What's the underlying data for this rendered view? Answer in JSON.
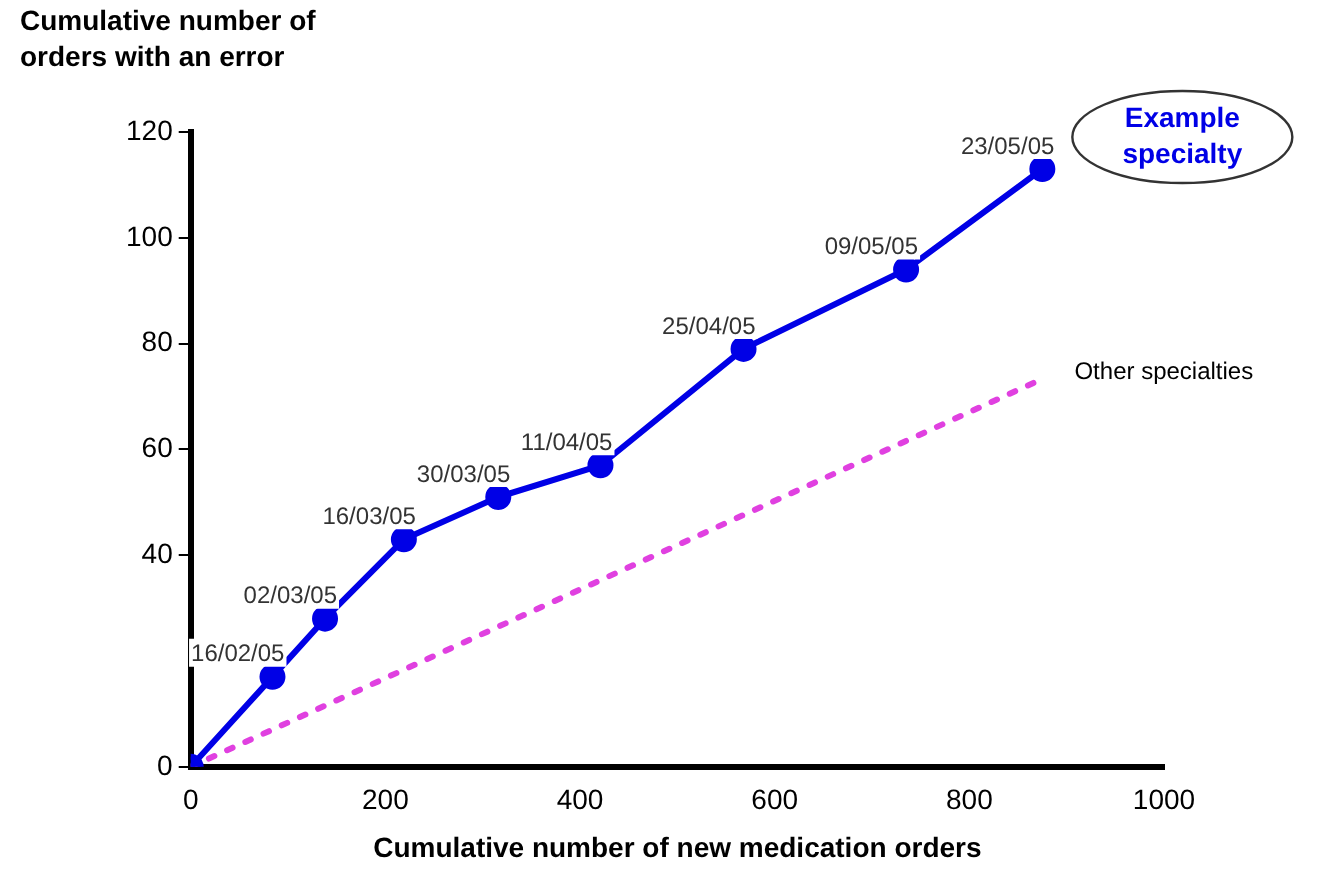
{
  "chart_data": {
    "type": "line",
    "ylabel": "Cumulative number of orders with an error",
    "xlabel": "Cumulative number of new medication orders",
    "xlim": [
      0,
      1000
    ],
    "xticks": [
      0,
      200,
      400,
      600,
      800,
      1000
    ],
    "ylim": [
      0,
      120
    ],
    "yticks": [
      0,
      40,
      60,
      80,
      100,
      120
    ],
    "grid": false,
    "legend": false,
    "series": [
      {
        "name": "Example specialty",
        "color": "#0000e6",
        "marker": "circle",
        "line_style": "solid",
        "x": [
          0,
          84,
          138,
          219,
          316,
          421,
          568,
          735,
          875
        ],
        "values": [
          0,
          17,
          28,
          43,
          51,
          57,
          79,
          94,
          113
        ],
        "value_labels": [
          null,
          "16/02/05",
          "02/03/05",
          "16/03/05",
          "30/03/05",
          "11/04/05",
          "25/04/05",
          "09/05/05",
          "23/05/05"
        ]
      },
      {
        "name": "Other specialties",
        "color": "#e040e0",
        "marker": "none",
        "line_style": "dotted",
        "x": [
          0,
          871
        ],
        "values": [
          0,
          73
        ]
      }
    ]
  }
}
